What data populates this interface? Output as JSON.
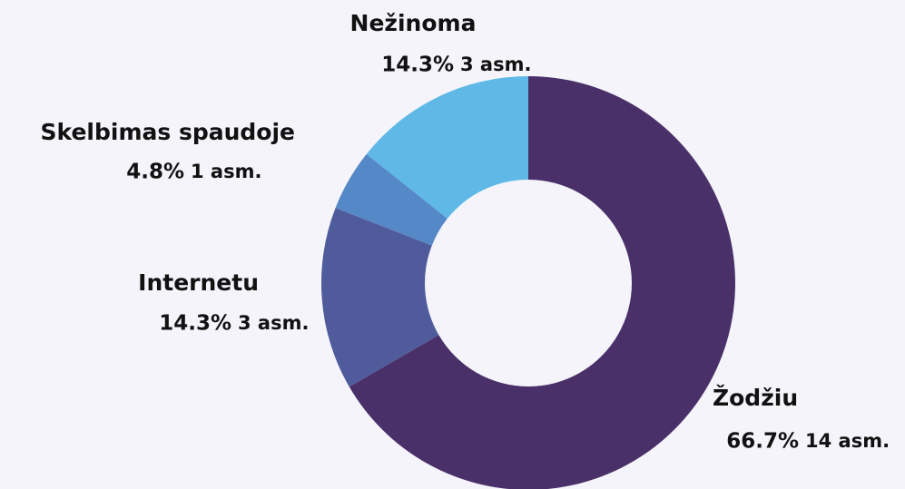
{
  "chart_data": {
    "type": "donut",
    "categories": [
      "Žodžiu",
      "Internetu",
      "Skelbimas spaudoje",
      "Nežinoma"
    ],
    "values": [
      66.7,
      14.3,
      4.8,
      14.3
    ],
    "value_labels": [
      "66.7%",
      "14.3%",
      "4.8%",
      "14.3%"
    ],
    "counts": [
      14,
      3,
      1,
      3
    ],
    "count_labels": [
      "14 asm.",
      "3 asm.",
      "1 asm.",
      "3 asm."
    ],
    "colors": [
      "#4a3069",
      "#4f5b9b",
      "#5588c6",
      "#5fb8e6"
    ]
  }
}
